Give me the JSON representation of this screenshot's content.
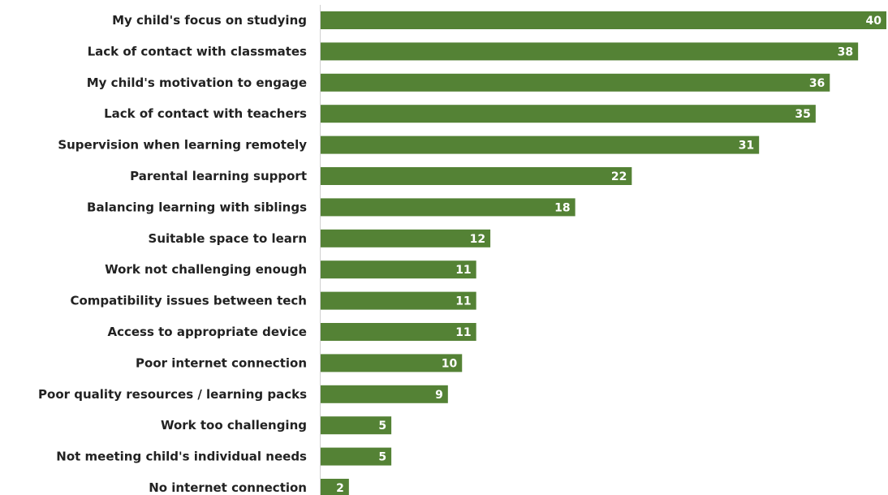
{
  "chart_data": {
    "type": "bar",
    "orientation": "horizontal",
    "categories": [
      "My child's focus on studying",
      "Lack of contact with classmates",
      "My child's motivation to engage",
      "Lack of contact with teachers",
      "Supervision when learning remotely",
      "Parental learning support",
      "Balancing learning with siblings",
      "Suitable space to learn",
      "Work not challenging enough",
      "Compatibility issues between tech",
      "Access to appropriate device",
      "Poor internet connection",
      "Poor quality resources / learning packs",
      "Work too challenging",
      "Not meeting child's individual needs",
      "No internet connection"
    ],
    "values": [
      40,
      38,
      36,
      35,
      31,
      22,
      18,
      12,
      11,
      11,
      11,
      10,
      9,
      5,
      5,
      2
    ],
    "title": "",
    "xlabel": "",
    "ylabel": "",
    "xlim": [
      0,
      40
    ],
    "grid": false,
    "legend": "none",
    "data_labels": "inside-end",
    "bar_color": "#548235",
    "label_color": "#ffffff"
  }
}
